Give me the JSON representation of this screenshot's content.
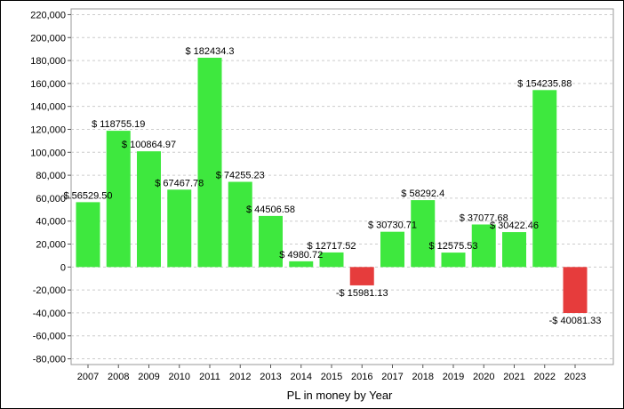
{
  "chart_data": {
    "type": "bar",
    "title": "",
    "xlabel": "PL in money by Year",
    "ylabel": "",
    "ylim": [
      -85000,
      225000
    ],
    "yticks": [
      220000,
      200000,
      180000,
      160000,
      140000,
      120000,
      100000,
      80000,
      60000,
      40000,
      20000,
      0,
      -20000,
      -40000,
      -60000,
      -80000
    ],
    "ytick_labels": [
      "220,000",
      "200,000",
      "180,000",
      "160,000",
      "140,000",
      "120,000",
      "100,000",
      "80,000",
      "60,000",
      "40,000",
      "20,000",
      "0",
      "-20,000",
      "-40,000",
      "-60,000",
      "-80,000"
    ],
    "grid": true,
    "categories": [
      "2007",
      "2008",
      "2009",
      "2010",
      "2011",
      "2012",
      "2013",
      "2014",
      "2015",
      "2016",
      "2017",
      "2018",
      "2019",
      "2020",
      "2021",
      "2022",
      "2023"
    ],
    "values": [
      56529.5,
      118755.19,
      100864.97,
      67467.78,
      182434.3,
      74255.23,
      44506.58,
      4980.72,
      12717.52,
      -15981.13,
      30730.71,
      58292.4,
      12575.53,
      37077.68,
      30422.46,
      154235.88,
      -40081.33
    ],
    "data_labels": [
      "$ 56529.50",
      "$ 118755.19",
      "$ 100864.97",
      "$ 67467.78",
      "$ 182434.3",
      "$ 74255.23",
      "$ 44506.58",
      "$ 4980.72",
      "$ 12717.52",
      "-$ 15981.13",
      "$ 30730.71",
      "$ 58292.4",
      "$ 12575.53",
      "$ 37077.68",
      "$ 30422.46",
      "$ 154235.88",
      "-$ 40081.33"
    ],
    "colors": {
      "positive": "#3ee83e",
      "negative": "#e63c3c",
      "grid": "#cccccc"
    }
  }
}
